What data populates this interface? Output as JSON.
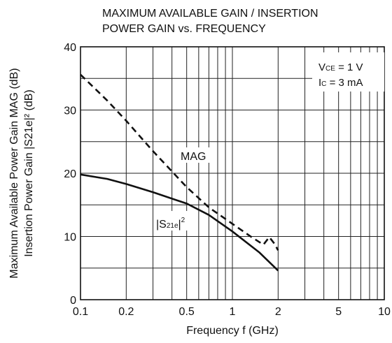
{
  "chart_data": {
    "type": "line",
    "title": [
      "MAXIMUM AVAILABLE GAIN / INSERTION",
      "POWER GAIN vs. FREQUENCY"
    ],
    "xlabel": "Frequency f (GHz)",
    "ylabel": [
      "Maximum Available Power Gain MAG (dB)",
      "Insertion Power Gain |S21e|² (dB)"
    ],
    "xscale": "log",
    "xlim": [
      0.1,
      10
    ],
    "ylim": [
      0,
      40
    ],
    "x_ticks": [
      {
        "value": 0.1,
        "label": "0.1"
      },
      {
        "value": 0.2,
        "label": "0.2"
      },
      {
        "value": 0.5,
        "label": "0.5"
      },
      {
        "value": 1,
        "label": "1"
      },
      {
        "value": 2,
        "label": "2"
      },
      {
        "value": 5,
        "label": "5"
      },
      {
        "value": 10,
        "label": "10"
      }
    ],
    "y_ticks": [
      {
        "value": 0,
        "label": "0"
      },
      {
        "value": 10,
        "label": "10"
      },
      {
        "value": 20,
        "label": "20"
      },
      {
        "value": 30,
        "label": "30"
      },
      {
        "value": 40,
        "label": "40"
      }
    ],
    "grid": true,
    "conditions": {
      "vce": {
        "main": "V",
        "sub": "CE",
        "rest": " = 1 V"
      },
      "ic": {
        "main": "I",
        "sub": "C",
        "rest": " = 3 mA"
      }
    },
    "series": [
      {
        "name": "MAG",
        "style": "dashed",
        "x": [
          0.1,
          0.15,
          0.2,
          0.3,
          0.5,
          0.7,
          1.0,
          1.3,
          1.6,
          1.75,
          1.9,
          2.0
        ],
        "y": [
          35.6,
          31.5,
          28.3,
          23.5,
          17.8,
          14.6,
          12.0,
          10.1,
          8.7,
          9.9,
          8.8,
          7.8
        ]
      },
      {
        "name": "|S21e|²",
        "style": "solid",
        "x": [
          0.1,
          0.15,
          0.2,
          0.3,
          0.5,
          0.7,
          1.0,
          1.5,
          2.0
        ],
        "y": [
          19.8,
          19.1,
          18.3,
          17.0,
          15.2,
          13.4,
          10.8,
          7.5,
          4.6
        ]
      }
    ],
    "series_labels": {
      "mag": "MAG",
      "s21": {
        "pre": "|S",
        "sub": "21e",
        "post": "|",
        "sup": "2"
      }
    }
  }
}
